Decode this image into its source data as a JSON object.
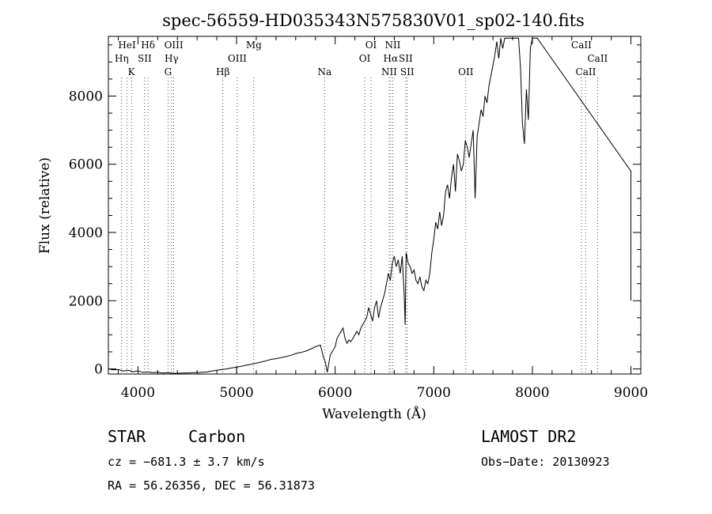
{
  "chart_data": {
    "type": "line",
    "title": "spec-56559-HD035343N575830V01_sp02-140.fits",
    "xlabel": "Wavelength (Å)",
    "ylabel": "Flux (relative)",
    "xlim": [
      3700,
      9100
    ],
    "ylim": [
      -150,
      9750
    ],
    "xticks": [
      {
        "value": 4000,
        "label": "4000"
      },
      {
        "value": 5000,
        "label": "5000"
      },
      {
        "value": 6000,
        "label": "6000"
      },
      {
        "value": 7000,
        "label": "7000"
      },
      {
        "value": 8000,
        "label": "8000"
      },
      {
        "value": 9000,
        "label": "9000"
      }
    ],
    "yticks": [
      {
        "value": 0,
        "label": "0"
      },
      {
        "value": 2000,
        "label": "2000"
      },
      {
        "value": 4000,
        "label": "4000"
      },
      {
        "value": 6000,
        "label": "6000"
      },
      {
        "value": 8000,
        "label": "8000"
      }
    ],
    "grid": false,
    "series": [
      {
        "x": [
          3700,
          3750,
          3800,
          3850,
          3900,
          3950,
          4000,
          4050,
          4100,
          4150,
          4200,
          4250,
          4300,
          4350,
          4400,
          4450,
          4500,
          4550,
          4600,
          4650,
          4700,
          4750,
          4800,
          4850,
          4900,
          4950,
          5000,
          5050,
          5100,
          5150,
          5200,
          5250,
          5300,
          5350,
          5400,
          5450,
          5500,
          5550,
          5600,
          5650,
          5700,
          5750,
          5800,
          5850,
          5880,
          5900,
          5920,
          5950,
          6000,
          6020,
          6040,
          6060,
          6080,
          6100,
          6120,
          6140,
          6160,
          6180,
          6200,
          6220,
          6240,
          6260,
          6280,
          6300,
          6320,
          6340,
          6360,
          6380,
          6400,
          6420,
          6440,
          6460,
          6480,
          6500,
          6520,
          6540,
          6560,
          6580,
          6600,
          6620,
          6640,
          6660,
          6680,
          6700,
          6710,
          6720,
          6740,
          6760,
          6780,
          6800,
          6820,
          6840,
          6860,
          6880,
          6900,
          6920,
          6940,
          6960,
          6980,
          7000,
          7020,
          7040,
          7060,
          7080,
          7100,
          7120,
          7140,
          7160,
          7180,
          7200,
          7220,
          7240,
          7260,
          7280,
          7300,
          7320,
          7340,
          7360,
          7380,
          7400,
          7420,
          7440,
          7460,
          7480,
          7500,
          7520,
          7540,
          7560,
          7580,
          7600,
          7620,
          7640,
          7660,
          7680,
          7700,
          7720,
          7740,
          7760,
          7780,
          7800,
          7820,
          7840,
          7860,
          7880,
          7900,
          7920,
          7940,
          7960,
          7980,
          8000,
          8050,
          9000,
          9000
        ],
        "values": [
          0,
          -30,
          -20,
          -60,
          -40,
          -80,
          -60,
          -100,
          -90,
          -110,
          -100,
          -120,
          -110,
          -130,
          -130,
          -120,
          -120,
          -110,
          -110,
          -100,
          -90,
          -60,
          -40,
          -20,
          0,
          30,
          50,
          80,
          110,
          140,
          170,
          200,
          240,
          280,
          300,
          330,
          360,
          400,
          450,
          480,
          520,
          580,
          650,
          700,
          350,
          200,
          -100,
          400,
          650,
          900,
          1000,
          1100,
          1200,
          900,
          750,
          850,
          800,
          900,
          1000,
          1100,
          1000,
          1200,
          1300,
          1400,
          1500,
          1800,
          1600,
          1400,
          1800,
          2000,
          1500,
          1800,
          2000,
          2200,
          2500,
          2800,
          2600,
          3100,
          3300,
          3000,
          3200,
          2800,
          3300,
          2200,
          1300,
          3400,
          3100,
          3000,
          2800,
          2900,
          2600,
          2500,
          2700,
          2400,
          2300,
          2600,
          2500,
          2800,
          3400,
          3800,
          4300,
          4100,
          4600,
          4200,
          4500,
          5200,
          5400,
          5000,
          5600,
          6000,
          5200,
          6300,
          6100,
          5800,
          6000,
          6700,
          6500,
          6200,
          6600,
          7000,
          5000,
          6800,
          7200,
          7600,
          7400,
          8000,
          7800,
          8300,
          8600,
          8900,
          9200,
          9600,
          9100,
          9700,
          9400,
          9700,
          9700,
          9700,
          9700,
          9700,
          9700,
          9700,
          9700,
          8800,
          7200,
          6600,
          8200,
          7300,
          9400,
          9700,
          9700,
          5800,
          2000
        ]
      }
    ],
    "spectral_lines": [
      {
        "name": "HeI",
        "wavelength": 3889,
        "row": 0
      },
      {
        "name": "Hη",
        "wavelength": 3835,
        "row": 1
      },
      {
        "name": "K",
        "wavelength": 3934,
        "row": 2
      },
      {
        "name": "Hδ",
        "wavelength": 4102,
        "row": 0
      },
      {
        "name": "SII",
        "wavelength": 4068,
        "row": 1
      },
      {
        "name": "OIII",
        "wavelength": 4363,
        "row": 0
      },
      {
        "name": "Hγ",
        "wavelength": 4340,
        "row": 1
      },
      {
        "name": "G",
        "wavelength": 4305,
        "row": 2
      },
      {
        "name": "Mg",
        "wavelength": 5175,
        "row": 0
      },
      {
        "name": "OIII",
        "wavelength": 5007,
        "row": 1
      },
      {
        "name": "Hβ",
        "wavelength": 4861,
        "row": 2
      },
      {
        "name": "Na",
        "wavelength": 5893,
        "row": 2
      },
      {
        "name": "OI",
        "wavelength": 6364,
        "row": 0
      },
      {
        "name": "OI",
        "wavelength": 6300,
        "row": 1
      },
      {
        "name": "NII",
        "wavelength": 6584,
        "row": 0
      },
      {
        "name": "Hα",
        "wavelength": 6563,
        "row": 1
      },
      {
        "name": "SII",
        "wavelength": 6716,
        "row": 1
      },
      {
        "name": "NII",
        "wavelength": 6548,
        "row": 2
      },
      {
        "name": "SII",
        "wavelength": 6731,
        "row": 2
      },
      {
        "name": "OII",
        "wavelength": 7325,
        "row": 2
      },
      {
        "name": "CaII",
        "wavelength": 8498,
        "row": 0
      },
      {
        "name": "CaII",
        "wavelength": 8662,
        "row": 1
      },
      {
        "name": "CaII",
        "wavelength": 8542,
        "row": 2
      }
    ]
  },
  "info": {
    "object_class": "STAR",
    "subclass": "Carbon",
    "survey": "LAMOST DR2",
    "cz": "cz = −681.3 ± 3.7 km/s",
    "obs_date": "Obs−Date: 20130923",
    "coords": "RA =  56.26356, DEC =  56.31873"
  }
}
